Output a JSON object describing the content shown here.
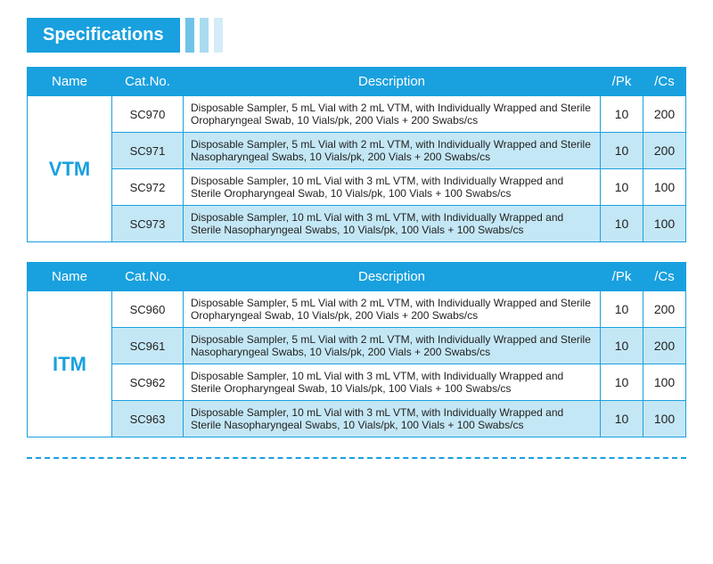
{
  "header": {
    "title": "Specifications"
  },
  "columns": [
    "Name",
    "Cat.No.",
    "Description",
    "/Pk",
    "/Cs"
  ],
  "colors": {
    "primary": "#19a0df",
    "altRow": "#c4e7f5",
    "barShades": [
      "#6fc3e9",
      "#a9dbf0",
      "#d4ecf7"
    ]
  },
  "tables": [
    {
      "name": "VTM",
      "rows": [
        {
          "cat": "SC970",
          "desc": "Disposable Sampler, 5 mL Vial with 2 mL VTM, with Individually Wrapped and Sterile Oropharyngeal Swab, 10 Vials/pk, 200 Vials + 200 Swabs/cs",
          "pk": "10",
          "cs": "200",
          "alt": false
        },
        {
          "cat": "SC971",
          "desc": "Disposable Sampler, 5 mL Vial with 2 mL VTM, with Individually Wrapped and Sterile Nasopharyngeal Swabs, 10 Vials/pk, 200 Vials + 200 Swabs/cs",
          "pk": "10",
          "cs": "200",
          "alt": true
        },
        {
          "cat": "SC972",
          "desc": "Disposable Sampler, 10 mL Vial with 3 mL VTM, with Individually Wrapped and Sterile Oropharyngeal Swab, 10 Vials/pk, 100 Vials + 100 Swabs/cs",
          "pk": "10",
          "cs": "100",
          "alt": false
        },
        {
          "cat": "SC973",
          "desc": "Disposable Sampler, 10 mL Vial with 3 mL VTM, with Individually Wrapped and Sterile Nasopharyngeal Swabs, 10 Vials/pk, 100 Vials + 100 Swabs/cs",
          "pk": "10",
          "cs": "100",
          "alt": true
        }
      ]
    },
    {
      "name": "ITM",
      "rows": [
        {
          "cat": "SC960",
          "desc": "Disposable Sampler, 5 mL Vial with 2 mL VTM, with Individually Wrapped and Sterile Oropharyngeal Swab, 10 Vials/pk, 200 Vials + 200 Swabs/cs",
          "pk": "10",
          "cs": "200",
          "alt": false
        },
        {
          "cat": "SC961",
          "desc": "Disposable Sampler, 5 mL Vial with 2 mL VTM, with Individually Wrapped and Sterile Nasopharyngeal Swabs, 10 Vials/pk, 200 Vials + 200 Swabs/cs",
          "pk": "10",
          "cs": "200",
          "alt": true
        },
        {
          "cat": "SC962",
          "desc": "Disposable Sampler, 10 mL Vial with 3 mL VTM, with Individually Wrapped and Sterile Oropharyngeal Swab, 10 Vials/pk, 100 Vials + 100 Swabs/cs",
          "pk": "10",
          "cs": "100",
          "alt": false
        },
        {
          "cat": "SC963",
          "desc": "Disposable Sampler, 10 mL Vial with 3 mL VTM, with Individually Wrapped and Sterile Nasopharyngeal Swabs, 10 Vials/pk, 100 Vials + 100 Swabs/cs",
          "pk": "10",
          "cs": "100",
          "alt": true
        }
      ]
    }
  ]
}
